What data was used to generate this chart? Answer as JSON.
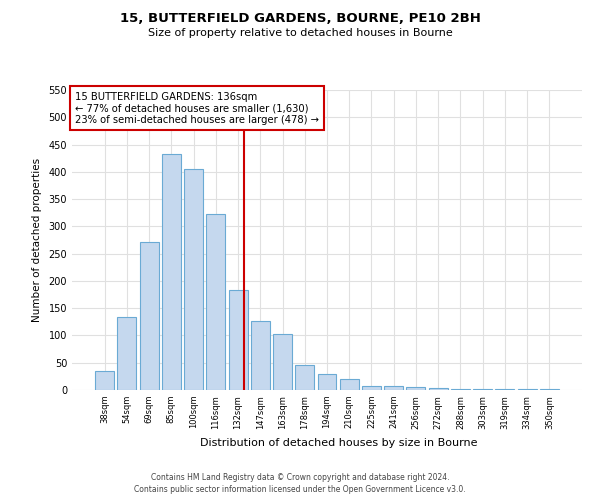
{
  "title": "15, BUTTERFIELD GARDENS, BOURNE, PE10 2BH",
  "subtitle": "Size of property relative to detached houses in Bourne",
  "xlabel": "Distribution of detached houses by size in Bourne",
  "ylabel": "Number of detached properties",
  "bar_labels": [
    "38sqm",
    "54sqm",
    "69sqm",
    "85sqm",
    "100sqm",
    "116sqm",
    "132sqm",
    "147sqm",
    "163sqm",
    "178sqm",
    "194sqm",
    "210sqm",
    "225sqm",
    "241sqm",
    "256sqm",
    "272sqm",
    "288sqm",
    "303sqm",
    "319sqm",
    "334sqm",
    "350sqm"
  ],
  "bar_values": [
    35,
    133,
    272,
    432,
    405,
    323,
    183,
    127,
    103,
    45,
    30,
    20,
    8,
    8,
    5,
    3,
    2,
    1,
    1,
    1,
    2
  ],
  "bar_color": "#c5d8ee",
  "bar_edge_color": "#6aaad4",
  "property_line_label": "15 BUTTERFIELD GARDENS: 136sqm",
  "annotation_line1": "← 77% of detached houses are smaller (1,630)",
  "annotation_line2": "23% of semi-detached houses are larger (478) →",
  "annotation_box_color": "#ffffff",
  "annotation_box_edge": "#cc0000",
  "property_line_color": "#cc0000",
  "property_line_x": 6.27,
  "ylim": [
    0,
    550
  ],
  "yticks": [
    0,
    50,
    100,
    150,
    200,
    250,
    300,
    350,
    400,
    450,
    500,
    550
  ],
  "footnote_line1": "Contains HM Land Registry data © Crown copyright and database right 2024.",
  "footnote_line2": "Contains public sector information licensed under the Open Government Licence v3.0.",
  "background_color": "#ffffff",
  "plot_bg_color": "#ffffff",
  "grid_color": "#e0e0e0"
}
